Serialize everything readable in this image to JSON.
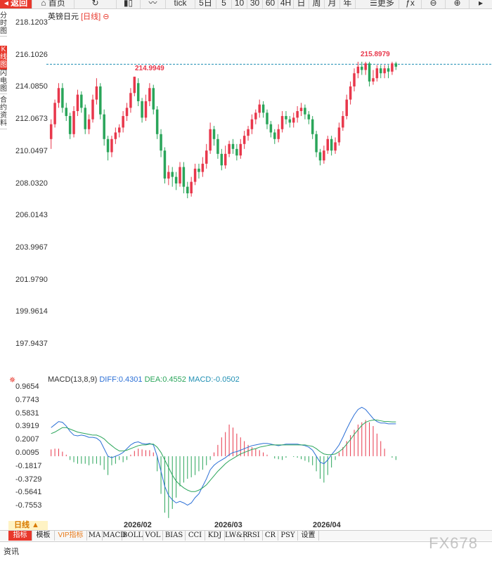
{
  "toolbar": {
    "back_label": "返回",
    "home_label": "首页",
    "tick_label": "tick",
    "periods": [
      "5日",
      "5",
      "10",
      "30",
      "60",
      "4H",
      "日",
      "周",
      "月",
      "年"
    ],
    "more_label": "更多"
  },
  "sidebar": {
    "items": [
      {
        "label": "分时图",
        "active": false
      },
      {
        "label": "K线图",
        "active": true
      },
      {
        "label": "闪电图",
        "active": false
      },
      {
        "label": "合约资料",
        "active": false
      }
    ]
  },
  "main_chart": {
    "symbol": "英镑日元",
    "period_tag": "[日线]",
    "circle_icon": "circle-icon",
    "y_ticks": [
      "218.1203",
      "216.1026",
      "214.0850",
      "212.0673",
      "210.0497",
      "208.0320",
      "206.0143",
      "203.9967",
      "201.9790",
      "199.9614",
      "197.9437"
    ],
    "high_marker_1": "214.9949",
    "high_marker_2": "215.8979",
    "ref_line": 215.75
  },
  "macd": {
    "legend_name": "MACD(13,8,9)",
    "diff_label": "DIFF:0.4301",
    "dea_label": "DEA:0.4552",
    "macd_label": "MACD:-0.0502",
    "y_ticks": [
      "0.9654",
      "0.7743",
      "0.5831",
      "0.3919",
      "0.2007",
      "0.0095",
      "-0.1817",
      "-0.3729",
      "-0.5641",
      "-0.7553"
    ]
  },
  "x_axis": {
    "labels": [
      "2026/02",
      "2026/03",
      "2026/04"
    ]
  },
  "period_tab": "日线 ▲",
  "bottom_tabs": [
    {
      "label": "指标",
      "active": true
    },
    {
      "label": "模板"
    },
    {
      "label": "VIP指标",
      "vip": true
    },
    {
      "label": "MA"
    },
    {
      "label": "MACD"
    },
    {
      "label": "BOLL"
    },
    {
      "label": "VOL"
    },
    {
      "label": "BIAS"
    },
    {
      "label": "CCI"
    },
    {
      "label": "KDJ"
    },
    {
      "label": "LW&R"
    },
    {
      "label": "RSI"
    },
    {
      "label": "CR"
    },
    {
      "label": "PSY"
    },
    {
      "label": "设置"
    }
  ],
  "news_label": "资讯",
  "watermark": "FX678",
  "colors": {
    "up": "#e8374b",
    "down": "#2aa55a",
    "diff": "#2b6fd6",
    "dea": "#2aa55a",
    "accent": "#e8372b"
  },
  "chart_data": {
    "type": "candlestick",
    "candles": [
      [
        211.2,
        212.1,
        210.6,
        212.4
      ],
      [
        212.1,
        213.4,
        211.9,
        213.6
      ],
      [
        213.4,
        214.3,
        213.1,
        214.6
      ],
      [
        214.3,
        213.1,
        212.8,
        214.6
      ],
      [
        213.1,
        212.6,
        212.3,
        213.4
      ],
      [
        212.6,
        211.5,
        211.2,
        212.8
      ],
      [
        211.5,
        212.9,
        211.3,
        213.2
      ],
      [
        212.9,
        213.9,
        212.6,
        214.2
      ],
      [
        213.9,
        213.1,
        212.8,
        214.1
      ],
      [
        213.1,
        211.8,
        211.5,
        213.3
      ],
      [
        211.8,
        212.4,
        211.5,
        212.7
      ],
      [
        212.4,
        213.6,
        212.2,
        213.9
      ],
      [
        213.6,
        214.4,
        213.3,
        214.9
      ],
      [
        214.4,
        212.7,
        212.4,
        214.6
      ],
      [
        212.7,
        211.2,
        210.8,
        213.0
      ],
      [
        211.2,
        210.4,
        209.9,
        211.4
      ],
      [
        210.4,
        211.2,
        210.1,
        211.4
      ],
      [
        211.2,
        211.6,
        210.9,
        211.9
      ],
      [
        211.6,
        211.9,
        211.3,
        212.1
      ],
      [
        211.9,
        212.6,
        211.6,
        212.9
      ],
      [
        212.6,
        213.1,
        212.3,
        213.4
      ],
      [
        213.1,
        214.0,
        212.8,
        214.3
      ],
      [
        214.0,
        214.99,
        213.8,
        214.99
      ],
      [
        214.6,
        213.5,
        213.2,
        214.9
      ],
      [
        213.5,
        212.5,
        212.2,
        213.7
      ],
      [
        212.5,
        213.5,
        212.3,
        213.9
      ],
      [
        213.5,
        214.3,
        213.2,
        214.6
      ],
      [
        214.3,
        213.0,
        212.7,
        214.5
      ],
      [
        213.0,
        211.5,
        211.2,
        213.2
      ],
      [
        211.5,
        210.5,
        210.1,
        211.8
      ],
      [
        210.5,
        208.8,
        208.5,
        210.7
      ],
      [
        208.8,
        209.2,
        208.4,
        209.6
      ],
      [
        209.2,
        208.9,
        208.3,
        209.5
      ],
      [
        208.9,
        208.5,
        208.1,
        209.2
      ],
      [
        208.5,
        209.5,
        208.3,
        209.8
      ],
      [
        209.5,
        208.3,
        207.9,
        209.8
      ],
      [
        208.3,
        207.9,
        207.6,
        208.6
      ],
      [
        207.9,
        208.6,
        207.7,
        208.9
      ],
      [
        208.6,
        209.4,
        208.4,
        209.7
      ],
      [
        209.4,
        209.2,
        208.8,
        209.7
      ],
      [
        209.2,
        209.7,
        208.9,
        210.1
      ],
      [
        209.7,
        210.5,
        209.4,
        210.9
      ],
      [
        210.5,
        211.8,
        210.3,
        212.2
      ],
      [
        211.8,
        211.2,
        210.8,
        212.0
      ],
      [
        211.2,
        210.3,
        210.0,
        211.5
      ],
      [
        210.3,
        209.6,
        209.3,
        210.6
      ],
      [
        209.6,
        210.3,
        209.4,
        210.8
      ],
      [
        210.3,
        210.9,
        210.1,
        211.1
      ],
      [
        210.9,
        210.6,
        210.3,
        211.2
      ],
      [
        210.6,
        210.2,
        209.9,
        210.9
      ],
      [
        210.2,
        210.9,
        210.0,
        211.2
      ],
      [
        210.9,
        211.4,
        210.6,
        211.7
      ],
      [
        211.4,
        211.8,
        211.1,
        212.0
      ],
      [
        211.8,
        212.4,
        211.5,
        212.7
      ],
      [
        212.4,
        212.8,
        212.1,
        213.0
      ],
      [
        212.8,
        213.3,
        212.5,
        213.6
      ],
      [
        213.3,
        212.8,
        212.5,
        213.5
      ],
      [
        212.8,
        212.1,
        211.8,
        213.0
      ],
      [
        212.1,
        211.6,
        211.3,
        212.3
      ],
      [
        211.6,
        211.2,
        210.9,
        211.8
      ],
      [
        211.2,
        211.8,
        211.0,
        212.1
      ],
      [
        211.8,
        212.6,
        211.6,
        212.9
      ],
      [
        212.6,
        212.4,
        212.1,
        212.9
      ],
      [
        212.4,
        212.2,
        211.9,
        212.6
      ],
      [
        212.2,
        212.5,
        211.9,
        212.8
      ],
      [
        212.5,
        212.9,
        212.2,
        213.2
      ],
      [
        212.9,
        213.1,
        212.6,
        213.4
      ],
      [
        213.1,
        212.7,
        212.4,
        213.3
      ],
      [
        212.7,
        212.4,
        212.1,
        212.9
      ],
      [
        212.4,
        211.5,
        211.2,
        212.6
      ],
      [
        211.5,
        210.4,
        210.1,
        211.7
      ],
      [
        210.4,
        209.9,
        209.6,
        210.6
      ],
      [
        209.9,
        210.5,
        209.7,
        210.8
      ],
      [
        210.5,
        211.2,
        210.3,
        211.4
      ],
      [
        211.2,
        210.5,
        210.2,
        211.4
      ],
      [
        210.5,
        211.0,
        210.3,
        211.3
      ],
      [
        211.0,
        211.9,
        210.8,
        212.2
      ],
      [
        211.9,
        212.6,
        211.7,
        212.9
      ],
      [
        212.6,
        213.6,
        212.4,
        213.9
      ],
      [
        213.6,
        214.4,
        213.3,
        214.7
      ],
      [
        214.4,
        215.2,
        214.1,
        215.5
      ],
      [
        215.2,
        215.6,
        214.9,
        215.9
      ],
      [
        215.6,
        215.4,
        215.1,
        215.9
      ],
      [
        215.4,
        215.8,
        215.1,
        215.9
      ],
      [
        215.8,
        214.7,
        214.4,
        215.9
      ],
      [
        214.7,
        214.9,
        214.5,
        215.4
      ],
      [
        214.9,
        215.5,
        214.7,
        215.7
      ],
      [
        215.5,
        215.2,
        214.9,
        215.7
      ],
      [
        215.2,
        215.5,
        214.9,
        215.7
      ],
      [
        215.5,
        215.3,
        214.9,
        215.7
      ],
      [
        215.3,
        215.8,
        215.1,
        215.9
      ],
      [
        215.8,
        215.6,
        215.4,
        215.9
      ]
    ],
    "y_range": [
      197.0,
      218.8
    ],
    "macd_range": [
      -0.85,
      0.97
    ],
    "macd_hist": [
      0.09,
      0.1,
      0.1,
      0.06,
      0.02,
      -0.05,
      -0.08,
      -0.1,
      -0.1,
      -0.1,
      -0.12,
      -0.1,
      -0.1,
      -0.12,
      -0.18,
      -0.25,
      -0.12,
      -0.1,
      -0.05,
      -0.08,
      -0.05,
      0.02,
      0.07,
      0.1,
      0.09,
      0.08,
      0.08,
      0.05,
      -0.2,
      -0.5,
      -0.75,
      -0.82,
      -0.7,
      -0.55,
      -0.4,
      -0.35,
      -0.3,
      -0.28,
      -0.25,
      -0.2,
      -0.18,
      -0.12,
      -0.05,
      0.05,
      0.15,
      0.25,
      0.32,
      0.42,
      0.38,
      0.3,
      0.25,
      0.2,
      0.15,
      0.12,
      0.1,
      0.08,
      0.05,
      0.02,
      0.0,
      -0.03,
      -0.04,
      -0.05,
      -0.02,
      0.0,
      -0.01,
      -0.02,
      -0.04,
      -0.06,
      -0.08,
      -0.12,
      -0.2,
      -0.3,
      -0.35,
      -0.25,
      -0.15,
      -0.05,
      0.05,
      0.12,
      0.2,
      0.28,
      0.35,
      0.42,
      0.45,
      0.48,
      0.45,
      0.4,
      0.3,
      0.2,
      0.1,
      0.0,
      -0.02,
      -0.05
    ],
    "diff": [
      0.38,
      0.42,
      0.46,
      0.45,
      0.4,
      0.33,
      0.28,
      0.27,
      0.28,
      0.27,
      0.25,
      0.25,
      0.24,
      0.2,
      0.1,
      0.0,
      -0.02,
      0.0,
      0.02,
      0.05,
      0.1,
      0.15,
      0.18,
      0.19,
      0.17,
      0.16,
      0.17,
      0.15,
      0.0,
      -0.2,
      -0.4,
      -0.52,
      -0.58,
      -0.62,
      -0.6,
      -0.62,
      -0.65,
      -0.62,
      -0.55,
      -0.5,
      -0.4,
      -0.3,
      -0.18,
      -0.12,
      -0.08,
      -0.05,
      -0.02,
      0.02,
      0.05,
      0.06,
      0.08,
      0.1,
      0.12,
      0.14,
      0.15,
      0.16,
      0.17,
      0.17,
      0.16,
      0.15,
      0.14,
      0.15,
      0.16,
      0.16,
      0.16,
      0.16,
      0.15,
      0.14,
      0.12,
      0.08,
      0.0,
      -0.08,
      -0.1,
      -0.05,
      0.02,
      0.08,
      0.15,
      0.25,
      0.36,
      0.46,
      0.55,
      0.62,
      0.65,
      0.62,
      0.56,
      0.5,
      0.46,
      0.44,
      0.44,
      0.43,
      0.43,
      0.43
    ],
    "dea": [
      0.3,
      0.32,
      0.35,
      0.38,
      0.38,
      0.36,
      0.34,
      0.32,
      0.31,
      0.3,
      0.29,
      0.28,
      0.28,
      0.26,
      0.23,
      0.18,
      0.14,
      0.1,
      0.07,
      0.07,
      0.08,
      0.1,
      0.12,
      0.14,
      0.15,
      0.15,
      0.16,
      0.16,
      0.12,
      0.05,
      -0.05,
      -0.15,
      -0.25,
      -0.33,
      -0.38,
      -0.42,
      -0.45,
      -0.47,
      -0.47,
      -0.45,
      -0.42,
      -0.38,
      -0.32,
      -0.26,
      -0.2,
      -0.15,
      -0.1,
      -0.06,
      -0.03,
      0.0,
      0.03,
      0.05,
      0.07,
      0.09,
      0.1,
      0.12,
      0.13,
      0.14,
      0.15,
      0.15,
      0.15,
      0.15,
      0.15,
      0.15,
      0.15,
      0.15,
      0.15,
      0.15,
      0.14,
      0.13,
      0.1,
      0.06,
      0.03,
      0.02,
      0.02,
      0.03,
      0.06,
      0.1,
      0.16,
      0.22,
      0.29,
      0.35,
      0.41,
      0.45,
      0.47,
      0.48,
      0.48,
      0.47,
      0.46,
      0.46,
      0.455,
      0.455
    ]
  }
}
